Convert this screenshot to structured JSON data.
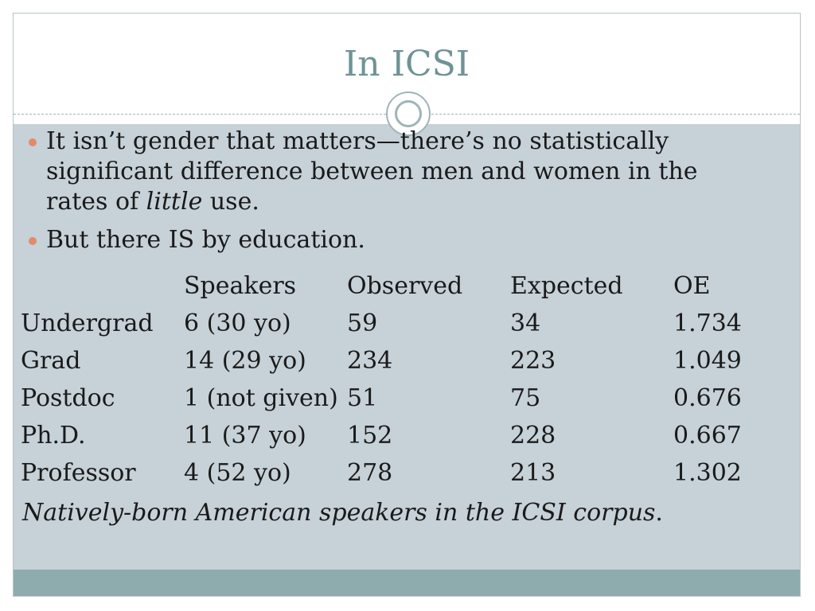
{
  "title": "In ICSI",
  "bullets": [
    {
      "text_before": "It isn’t gender that matters—there’s no statistically significant difference between men and women in the rates of ",
      "emphasis": "little",
      "text_after": " use."
    },
    {
      "text": "But there IS by education."
    }
  ],
  "table": {
    "headers": [
      "",
      "Speakers",
      "Observed",
      "Expected",
      "OE"
    ],
    "rows": [
      [
        "Undergrad",
        "6 (30 yo)",
        "59",
        "34",
        "1.734"
      ],
      [
        "Grad",
        "14 (29 yo)",
        "234",
        "223",
        "1.049"
      ],
      [
        "Postdoc",
        "1 (not given)",
        "51",
        "75",
        "0.676"
      ],
      [
        "Ph.D.",
        "11 (37 yo)",
        "152",
        "228",
        "0.667"
      ],
      [
        "Professor",
        "4 (52 yo)",
        "278",
        "213",
        "1.302"
      ]
    ]
  },
  "caption_main": "Natively-born American speakers in the ICSI corpus",
  "caption_end": ".",
  "colors": {
    "title": "#6f9397",
    "content_bg": "#c6d1d8",
    "footer": "#8eacae",
    "bullet": "#e28b6b"
  }
}
